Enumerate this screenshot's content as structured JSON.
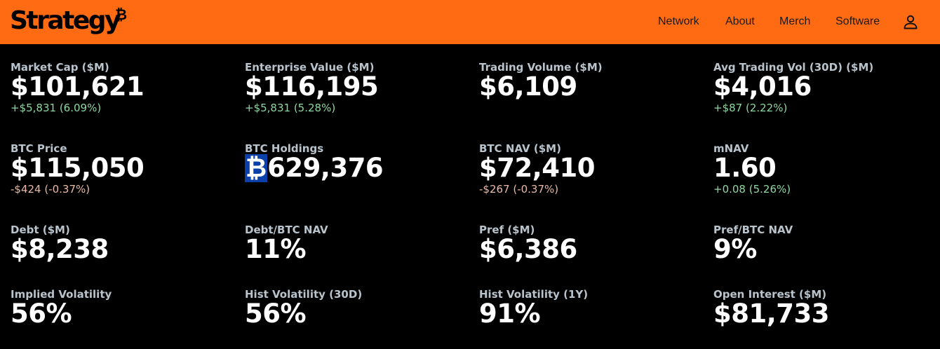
{
  "header": {
    "logo_text": "Strategy",
    "logo_mark": "₿",
    "nav": [
      "Network",
      "About",
      "Merch",
      "Software"
    ],
    "user_icon": "user-icon",
    "background": "#ff6b12"
  },
  "metrics": [
    {
      "label": "Market Cap ($M)",
      "value": "$101,621",
      "change": "+$5,831 (6.09%)"
    },
    {
      "label": "Enterprise Value ($M)",
      "value": "$116,195",
      "change": "+$5,831 (5.28%)"
    },
    {
      "label": "Trading Volume ($M)",
      "value": "$6,109",
      "change": ""
    },
    {
      "label": "Avg Trading Vol (30D) ($M)",
      "value": "$4,016",
      "change": "+$87 (2.22%)"
    },
    {
      "label": "BTC Price",
      "value": "$115,050",
      "change": "-$424 (-0.37%)"
    },
    {
      "label": "BTC Holdings",
      "value_symbol": "₿",
      "value": "629,376",
      "change": ""
    },
    {
      "label": "BTC NAV ($M)",
      "value": "$72,410",
      "change": "-$267 (-0.37%)"
    },
    {
      "label": "mNAV",
      "value": "1.60",
      "change": "+0.08 (5.26%)"
    },
    {
      "label": "Debt ($M)",
      "value": "$8,238",
      "change": ""
    },
    {
      "label": "Debt/BTC NAV",
      "value": "11%",
      "change": ""
    },
    {
      "label": "Pref ($M)",
      "value": "$6,386",
      "change": ""
    },
    {
      "label": "Pref/BTC NAV",
      "value": "9%",
      "change": ""
    },
    {
      "label": "Implied Volatility",
      "value": "56%",
      "change": ""
    },
    {
      "label": "Hist Volatility (30D)",
      "value": "56%",
      "change": ""
    },
    {
      "label": "Hist Volatility (1Y)",
      "value": "91%",
      "change": ""
    },
    {
      "label": "Open Interest ($M)",
      "value": "$81,733",
      "change": ""
    }
  ],
  "colors": {
    "positive": "#8ed8a0",
    "negative": "#e8b9a6",
    "label": "#b9c3cc",
    "value": "#ffffff"
  }
}
